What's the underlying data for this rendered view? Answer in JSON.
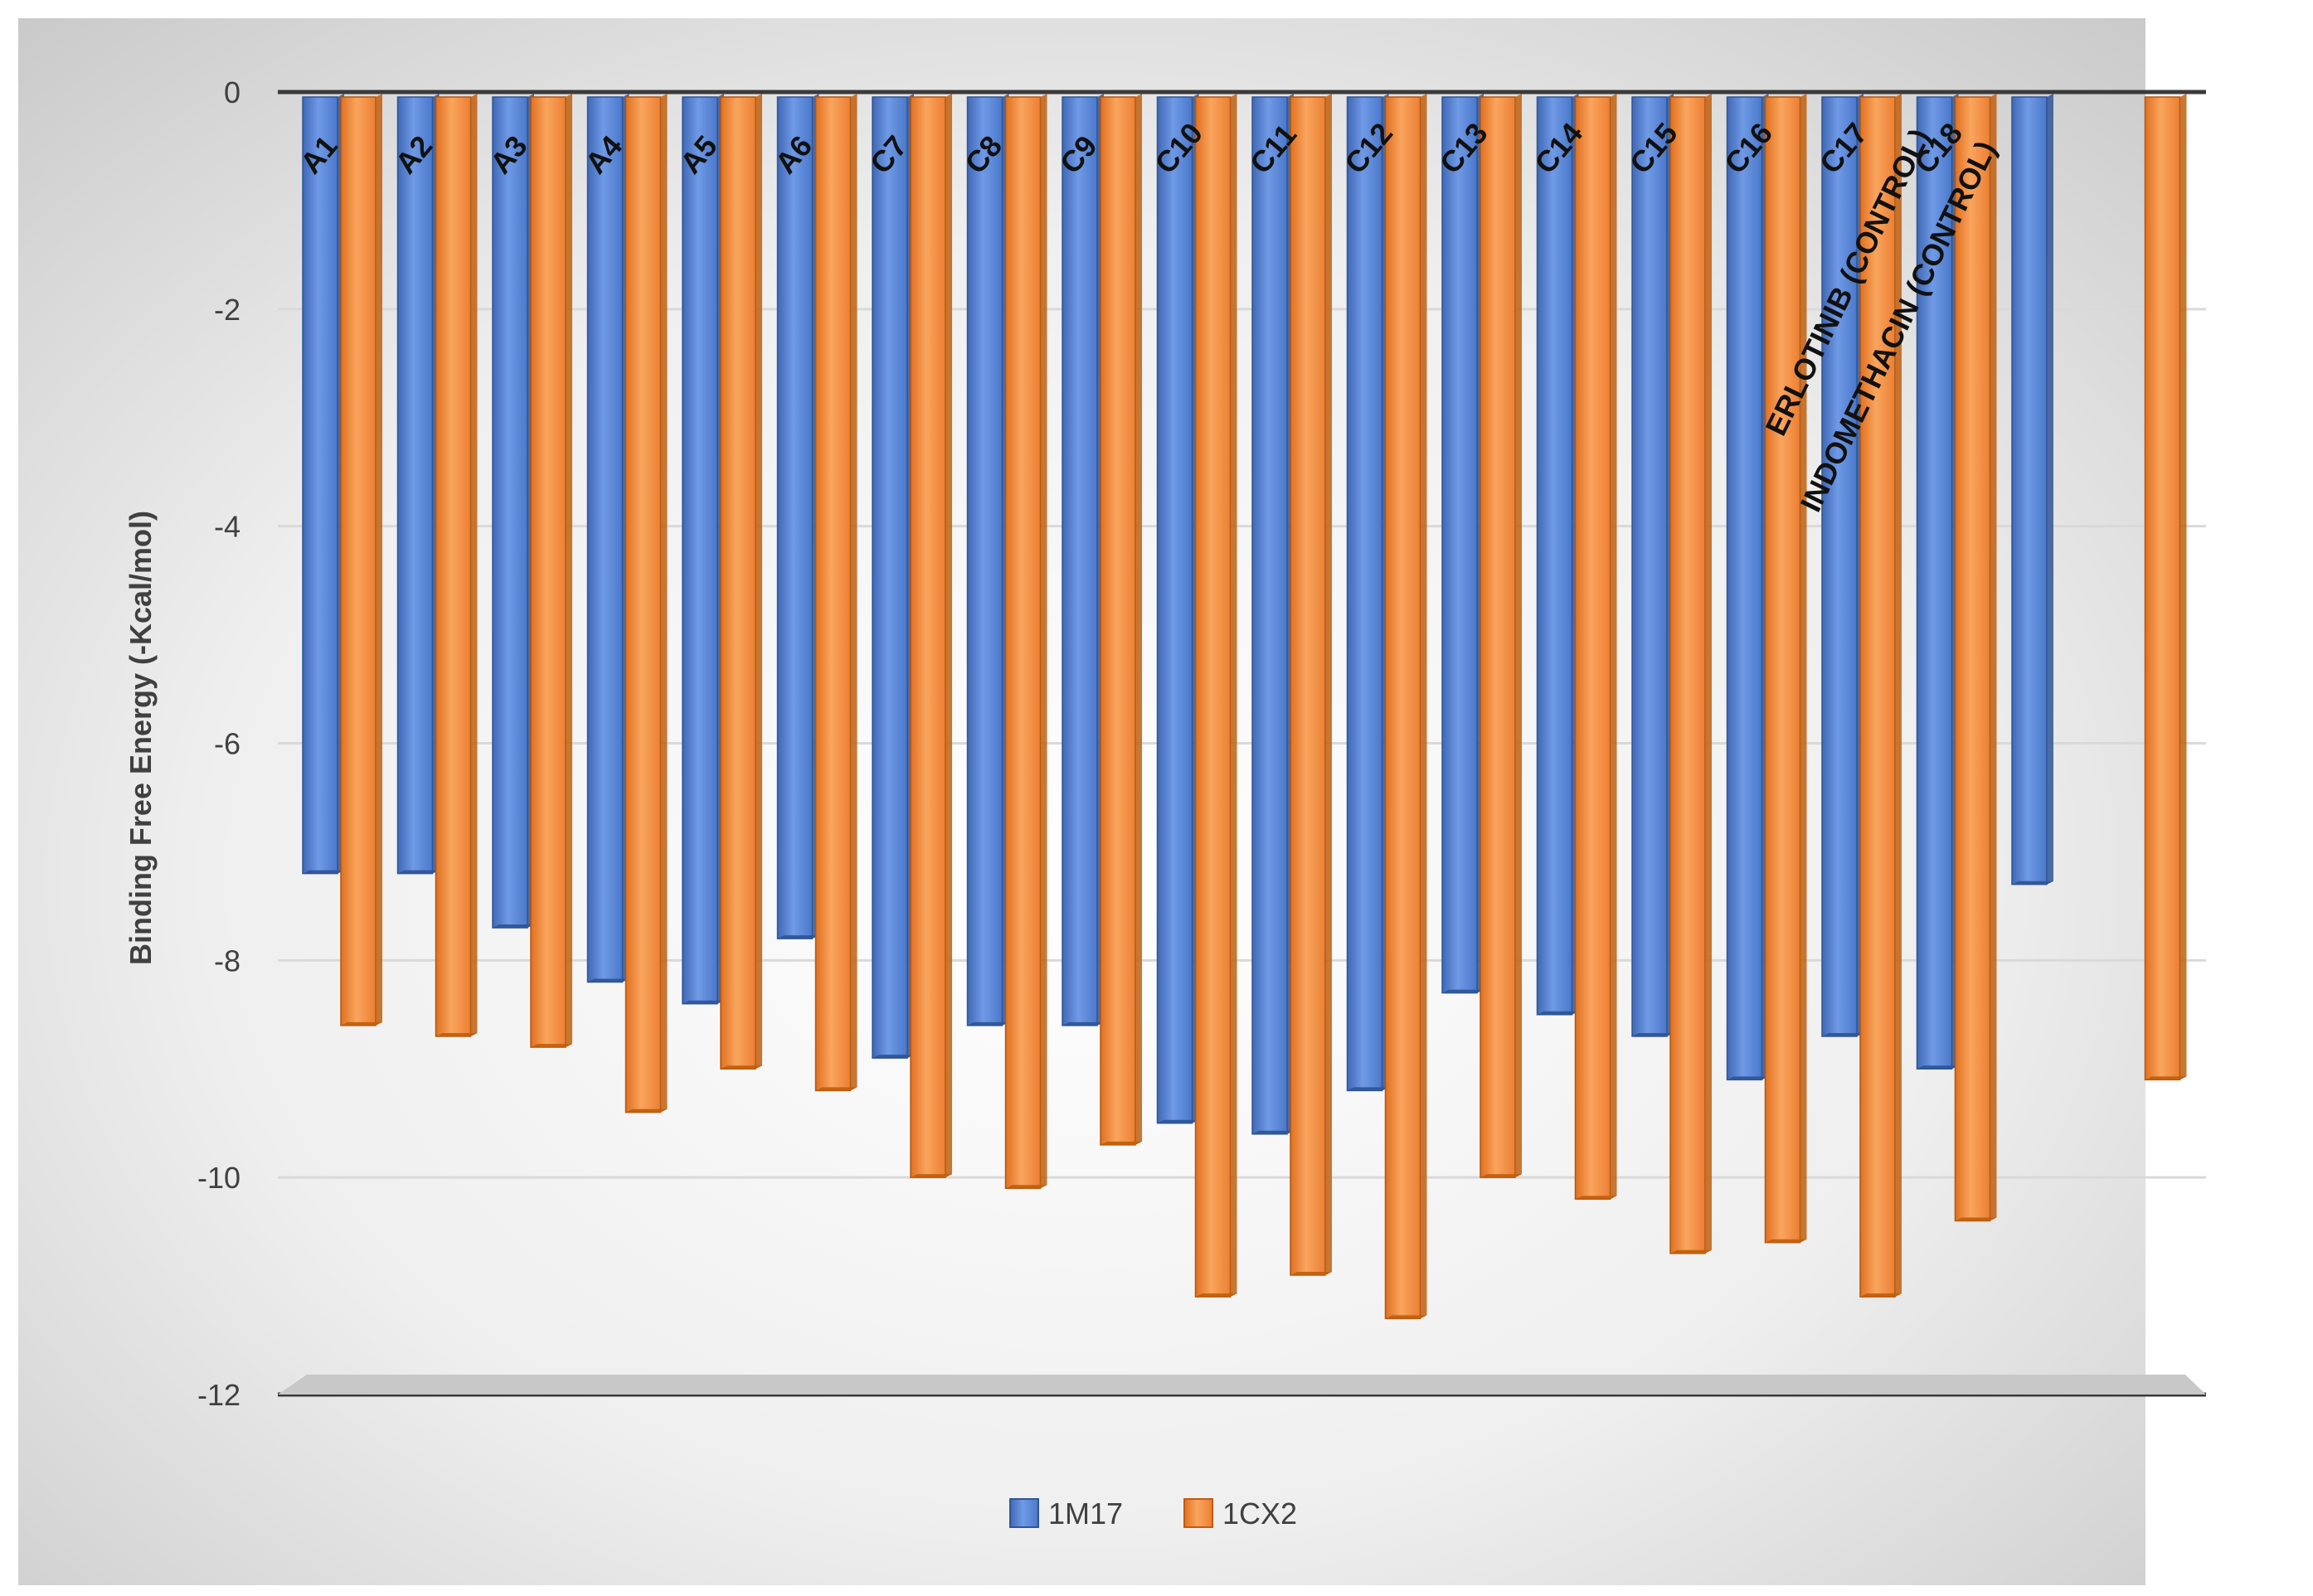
{
  "chart_data": {
    "type": "bar",
    "title": "",
    "xlabel": "",
    "ylabel": "Binding Free Energy (-Kcal/mol)",
    "ylim": [
      -12,
      0
    ],
    "yticks": [
      0,
      -2,
      -4,
      -6,
      -8,
      -10,
      -12
    ],
    "ytick_labels": [
      "0",
      "-2",
      "-4",
      "-6",
      "-8",
      "-10",
      "-12"
    ],
    "grid": true,
    "legend_position": "bottom",
    "categories": [
      "A1",
      "A2",
      "A3",
      "A4",
      "A5",
      "A6",
      "C7",
      "C8",
      "C9",
      "C10",
      "C11",
      "C12",
      "C13",
      "C14",
      "C15",
      "C16",
      "C17",
      "C18",
      "ERLOTINIB (CONTROL)",
      "INDOMETHACIN (CONTROL)"
    ],
    "series": [
      {
        "name": "1M17",
        "color": "#4472C4",
        "values": [
          -7.2,
          -7.2,
          -7.7,
          -8.2,
          -8.4,
          -7.8,
          -8.9,
          -8.6,
          -8.6,
          -9.5,
          -9.6,
          -9.2,
          -8.3,
          -8.5,
          -8.7,
          -9.1,
          -8.7,
          -9.0,
          -7.3,
          null
        ]
      },
      {
        "name": "1CX2",
        "color": "#ED7D31",
        "values": [
          -8.6,
          -8.7,
          -8.8,
          -9.4,
          -9.0,
          -9.2,
          -10.0,
          -10.1,
          -9.7,
          -11.1,
          -10.9,
          -11.3,
          -10.0,
          -10.2,
          -10.7,
          -10.6,
          -11.1,
          -10.4,
          null,
          -9.1
        ]
      }
    ]
  }
}
